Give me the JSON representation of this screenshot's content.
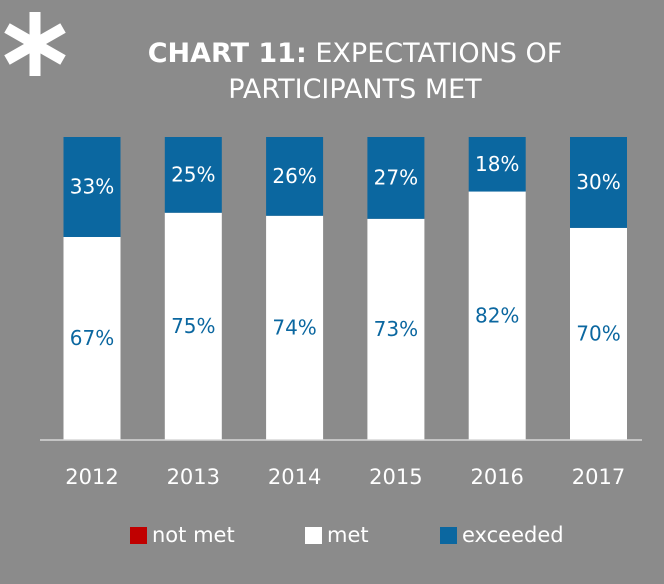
{
  "chart_data": {
    "type": "stacked_bar",
    "title_prefix": "CHART 11:",
    "title": "EXPECTATIONS OF PARTICIPANTS MET",
    "categories": [
      "2012",
      "2013",
      "2014",
      "2015",
      "2016",
      "2017"
    ],
    "series": [
      {
        "name": "not met",
        "color": "#c00000",
        "values": [
          0,
          0,
          0,
          0,
          0,
          0
        ]
      },
      {
        "name": "met",
        "color": "#ffffff",
        "values": [
          67,
          75,
          74,
          73,
          82,
          70
        ],
        "value_labels": [
          "67%",
          "75%",
          "74%",
          "73%",
          "82%",
          "70%"
        ]
      },
      {
        "name": "exceeded",
        "color": "#0b67a0",
        "values": [
          33,
          25,
          26,
          27,
          18,
          30
        ],
        "value_labels": [
          "33%",
          "25%",
          "26%",
          "27%",
          "18%",
          "30%"
        ]
      }
    ],
    "ylim": [
      0,
      100
    ],
    "legend": "bottom"
  }
}
